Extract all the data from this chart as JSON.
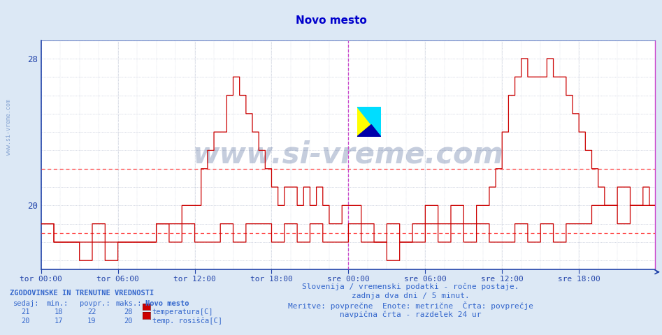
{
  "title": "Novo mesto",
  "title_color": "#0000cc",
  "bg_color": "#dce8f5",
  "plot_bg_color": "#ffffff",
  "grid_color": "#b0b8cc",
  "ylim": [
    16.5,
    29.0
  ],
  "yticks": [
    20,
    28
  ],
  "ylabel_color": "#2244aa",
  "xlabel_color": "#2244aa",
  "axis_color": "#2244aa",
  "num_points": 576,
  "temp_color": "#cc0000",
  "dew_color": "#cc0000",
  "hline_avg_temp": 22.0,
  "hline_avg_dew": 18.5,
  "hline_color": "#ff4444",
  "vline_color": "#cc44cc",
  "xtick_labels": [
    "tor 00:00",
    "tor 06:00",
    "tor 12:00",
    "tor 18:00",
    "sre 00:00",
    "sre 06:00",
    "sre 12:00",
    "sre 18:00"
  ],
  "xtick_positions": [
    0,
    72,
    144,
    216,
    288,
    360,
    432,
    504
  ],
  "watermark": "www.si-vreme.com",
  "watermark_color": "#1a3a7a",
  "watermark_alpha": 0.25,
  "side_watermark": "www.si-vreme.com",
  "subtitle1": "Slovenija / vremenski podatki - ročne postaje.",
  "subtitle2": "zadnja dva dni / 5 minut.",
  "subtitle3": "Meritve: povprečne  Enote: metrične  Črta: povprečje",
  "subtitle4": "navpična črta - razdelek 24 ur",
  "subtitle_color": "#3366cc",
  "legend_title": "ZGODOVINSKE IN TRENUTNE VREDNOSTI",
  "legend_headers": [
    "sedaj:",
    "min.:",
    "povpr.:",
    "maks.:",
    "Novo mesto"
  ],
  "legend_row1": [
    "21",
    "18",
    "22",
    "28",
    "temperatura[C]"
  ],
  "legend_row2": [
    "20",
    "17",
    "19",
    "20",
    "temp. rosišča[C]"
  ],
  "legend_color": "#3366cc"
}
